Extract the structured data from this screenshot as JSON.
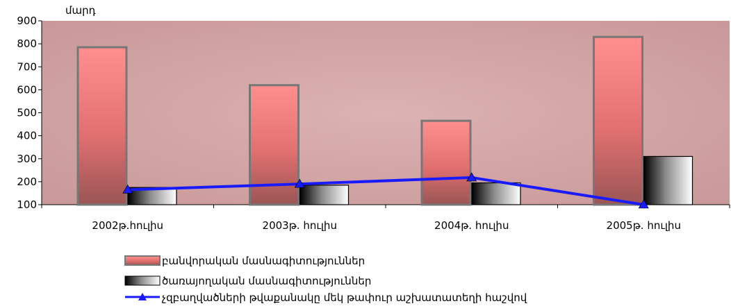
{
  "chart_data": {
    "type": "bar",
    "y_unit_label": "մարդ",
    "ylim": [
      100,
      900
    ],
    "yticks": [
      100,
      200,
      300,
      400,
      500,
      600,
      700,
      800,
      900
    ],
    "categories": [
      "2002թ.հուլիս",
      "2003թ. հուլիս",
      "2004թ. հուլիս",
      "2005թ. հուլիս"
    ],
    "series": [
      {
        "name": "բանվորական մասնագիտություններ",
        "type": "bar",
        "color": "#f07070",
        "values": [
          785,
          620,
          465,
          830
        ]
      },
      {
        "name": "ծառայողական մասնագիտություններ",
        "type": "bar",
        "color": "#ffffff",
        "values": [
          175,
          185,
          195,
          310
        ]
      },
      {
        "name": "չզբաղվածների թվաքանակը մեկ թափուր աշխատատեղի հաշվով",
        "type": "line",
        "color": "#1a1aff",
        "values": [
          165,
          190,
          218,
          100
        ]
      }
    ],
    "plot_background": "#d8aaaa",
    "grid": false,
    "legend_position": "bottom"
  }
}
